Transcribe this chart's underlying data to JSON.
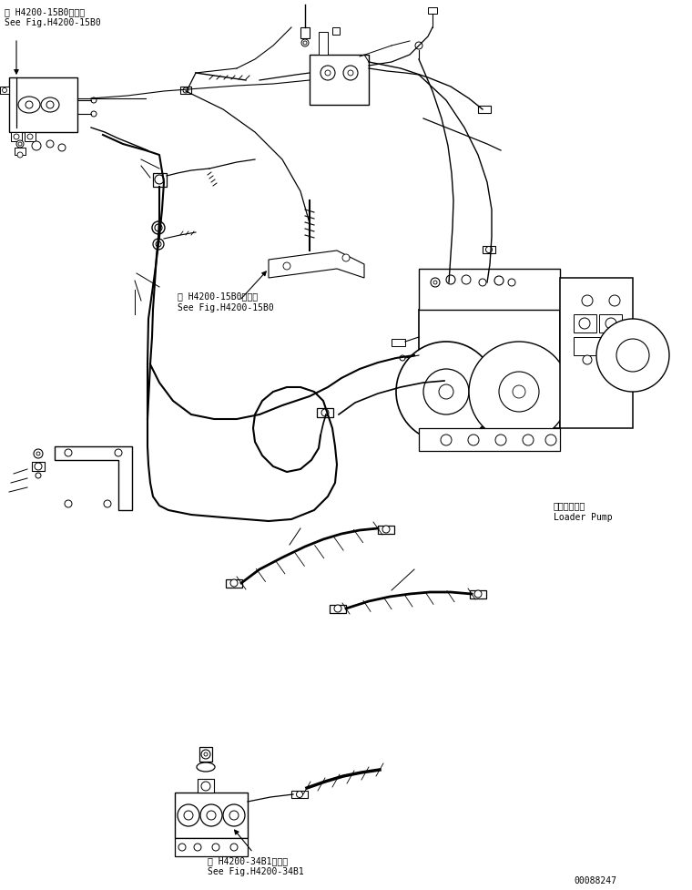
{
  "bg_color": "#ffffff",
  "line_color": "#000000",
  "text_color": "#000000",
  "fig_width": 7.6,
  "fig_height": 9.77,
  "dpi": 100,
  "labels": {
    "top_left_jp": "第 H4200-15B0図参照",
    "top_left_en": "See Fig.H4200-15B0",
    "mid_jp": "第 H4200-15B0図参照",
    "mid_en": "See Fig.H4200-15B0",
    "loader_pump_jp": "ローダポンプ",
    "loader_pump_en": "Loader Pump",
    "bottom_jp": "第 H4200-34B1図参照",
    "bottom_en": "See Fig.H4200-34B1",
    "part_number": "00088247"
  }
}
